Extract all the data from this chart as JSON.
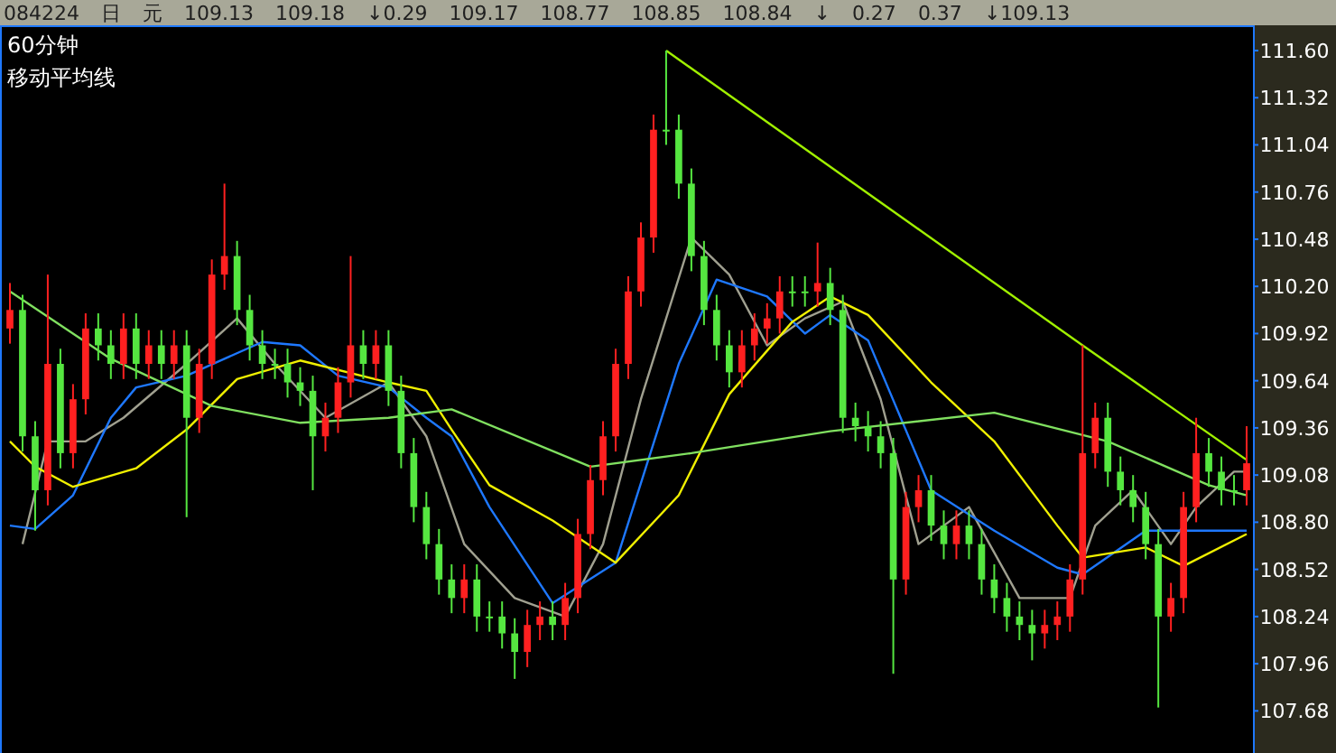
{
  "chart_data": {
    "type": "candlestick",
    "title": "60分钟",
    "subtitle": "移动平均线",
    "annotations": [
      "084224",
      "日",
      "元",
      "109.13",
      "109.18",
      "↓0.29",
      "109.17",
      "108.77",
      "108.85",
      "108.84",
      "↓",
      "0.27",
      "0.37",
      "↓109.13"
    ],
    "categories": [
      null,
      null,
      null,
      null,
      null,
      null,
      null,
      null,
      null,
      null,
      null,
      null,
      null,
      null,
      null,
      null,
      null,
      null,
      null,
      null,
      null,
      null,
      null,
      null,
      null,
      null,
      null,
      null,
      null,
      null,
      null,
      null,
      null,
      null,
      null,
      null,
      null,
      null,
      null,
      null,
      null,
      null,
      null,
      null,
      null,
      null,
      null,
      null,
      null,
      null,
      null,
      null,
      null,
      null,
      null,
      null,
      null,
      null,
      null,
      null,
      null,
      null,
      null,
      null,
      null,
      null,
      null,
      null,
      null,
      null,
      null,
      null,
      null,
      null,
      null,
      null,
      null,
      null,
      null,
      null,
      null,
      null,
      null,
      null,
      null,
      null,
      null,
      null,
      null,
      null,
      null,
      null,
      null,
      null,
      null,
      null,
      null,
      null,
      null
    ],
    "ohlc": [
      [
        109.95,
        110.22,
        109.86,
        110.06
      ],
      [
        110.06,
        110.15,
        109.22,
        109.31
      ],
      [
        109.31,
        109.4,
        108.75,
        108.99
      ],
      [
        108.99,
        110.27,
        108.9,
        109.74
      ],
      [
        109.74,
        109.83,
        109.12,
        109.21
      ],
      [
        109.21,
        109.62,
        109.12,
        109.53
      ],
      [
        109.53,
        110.04,
        109.44,
        109.95
      ],
      [
        109.95,
        110.04,
        109.76,
        109.85
      ],
      [
        109.85,
        109.94,
        109.65,
        109.74
      ],
      [
        109.74,
        110.04,
        109.65,
        109.95
      ],
      [
        109.95,
        110.04,
        109.65,
        109.74
      ],
      [
        109.74,
        109.94,
        109.65,
        109.85
      ],
      [
        109.85,
        109.94,
        109.65,
        109.74
      ],
      [
        109.74,
        109.94,
        109.65,
        109.85
      ],
      [
        109.85,
        109.94,
        108.83,
        109.42
      ],
      [
        109.42,
        109.83,
        109.33,
        109.74
      ],
      [
        109.74,
        110.36,
        109.65,
        110.27
      ],
      [
        110.27,
        110.81,
        110.18,
        110.38
      ],
      [
        110.38,
        110.47,
        109.97,
        110.06
      ],
      [
        110.06,
        110.15,
        109.76,
        109.85
      ],
      [
        109.85,
        109.94,
        109.65,
        109.74
      ],
      [
        109.74,
        109.83,
        109.65,
        109.74
      ],
      [
        109.74,
        109.83,
        109.54,
        109.63
      ],
      [
        109.63,
        109.72,
        109.49,
        109.58
      ],
      [
        109.58,
        109.67,
        108.99,
        109.31
      ],
      [
        109.31,
        109.51,
        109.22,
        109.42
      ],
      [
        109.42,
        109.72,
        109.33,
        109.63
      ],
      [
        109.63,
        110.38,
        109.54,
        109.85
      ],
      [
        109.85,
        109.94,
        109.65,
        109.74
      ],
      [
        109.74,
        109.94,
        109.65,
        109.85
      ],
      [
        109.85,
        109.94,
        109.49,
        109.58
      ],
      [
        109.58,
        109.67,
        109.12,
        109.21
      ],
      [
        109.21,
        109.3,
        108.8,
        108.89
      ],
      [
        108.89,
        108.98,
        108.58,
        108.67
      ],
      [
        108.67,
        108.76,
        108.37,
        108.46
      ],
      [
        108.46,
        108.55,
        108.26,
        108.35
      ],
      [
        108.35,
        108.55,
        108.26,
        108.46
      ],
      [
        108.46,
        108.55,
        108.15,
        108.24
      ],
      [
        108.24,
        108.33,
        108.15,
        108.24
      ],
      [
        108.24,
        108.33,
        108.05,
        108.14
      ],
      [
        108.14,
        108.23,
        107.87,
        108.03
      ],
      [
        108.03,
        108.28,
        107.94,
        108.19
      ],
      [
        108.19,
        108.33,
        108.1,
        108.24
      ],
      [
        108.24,
        108.33,
        108.1,
        108.19
      ],
      [
        108.19,
        108.44,
        108.1,
        108.35
      ],
      [
        108.35,
        108.82,
        108.26,
        108.73
      ],
      [
        108.73,
        109.14,
        108.64,
        109.05
      ],
      [
        109.05,
        109.4,
        108.96,
        109.31
      ],
      [
        109.31,
        109.83,
        109.22,
        109.74
      ],
      [
        109.74,
        110.26,
        109.65,
        110.17
      ],
      [
        110.17,
        110.58,
        110.08,
        110.49
      ],
      [
        110.49,
        111.22,
        110.4,
        111.13
      ],
      [
        111.13,
        111.6,
        111.04,
        111.13
      ],
      [
        111.13,
        111.22,
        110.72,
        110.81
      ],
      [
        110.81,
        110.9,
        110.29,
        110.38
      ],
      [
        110.38,
        110.47,
        109.97,
        110.06
      ],
      [
        110.06,
        110.15,
        109.76,
        109.85
      ],
      [
        109.85,
        109.94,
        109.6,
        109.69
      ],
      [
        109.69,
        109.94,
        109.6,
        109.85
      ],
      [
        109.85,
        110.04,
        109.76,
        109.95
      ],
      [
        109.95,
        110.1,
        109.86,
        110.01
      ],
      [
        110.01,
        110.26,
        109.92,
        110.17
      ],
      [
        110.17,
        110.26,
        110.08,
        110.17
      ],
      [
        110.17,
        110.26,
        110.08,
        110.17
      ],
      [
        110.17,
        110.46,
        110.08,
        110.22
      ],
      [
        110.22,
        110.31,
        109.97,
        110.06
      ],
      [
        110.06,
        110.15,
        109.33,
        109.42
      ],
      [
        109.42,
        109.51,
        109.28,
        109.37
      ],
      [
        109.37,
        109.46,
        109.22,
        109.31
      ],
      [
        109.31,
        109.4,
        109.12,
        109.21
      ],
      [
        109.21,
        109.3,
        107.9,
        108.46
      ],
      [
        108.46,
        108.98,
        108.37,
        108.89
      ],
      [
        108.89,
        109.08,
        108.8,
        108.99
      ],
      [
        108.99,
        109.08,
        108.69,
        108.78
      ],
      [
        108.78,
        108.87,
        108.58,
        108.67
      ],
      [
        108.67,
        108.87,
        108.58,
        108.78
      ],
      [
        108.78,
        108.87,
        108.58,
        108.67
      ],
      [
        108.67,
        108.76,
        108.37,
        108.46
      ],
      [
        108.46,
        108.55,
        108.26,
        108.35
      ],
      [
        108.35,
        108.44,
        108.15,
        108.24
      ],
      [
        108.24,
        108.33,
        108.1,
        108.19
      ],
      [
        108.19,
        108.28,
        107.98,
        108.14
      ],
      [
        108.14,
        108.28,
        108.05,
        108.19
      ],
      [
        108.19,
        108.33,
        108.1,
        108.24
      ],
      [
        108.24,
        108.55,
        108.15,
        108.46
      ],
      [
        108.46,
        109.85,
        108.37,
        109.21
      ],
      [
        109.21,
        109.51,
        109.12,
        109.42
      ],
      [
        109.42,
        109.51,
        109.01,
        109.1
      ],
      [
        109.1,
        109.19,
        108.9,
        108.99
      ],
      [
        108.99,
        109.08,
        108.8,
        108.89
      ],
      [
        108.89,
        108.98,
        108.58,
        108.67
      ],
      [
        108.67,
        108.76,
        107.7,
        108.24
      ],
      [
        108.24,
        108.44,
        108.15,
        108.35
      ],
      [
        108.35,
        108.98,
        108.26,
        108.89
      ],
      [
        108.89,
        109.42,
        108.8,
        109.21
      ],
      [
        109.21,
        109.3,
        109.01,
        109.1
      ],
      [
        109.1,
        109.19,
        108.9,
        108.99
      ],
      [
        108.99,
        109.08,
        108.9,
        108.99
      ],
      [
        108.99,
        109.37,
        108.9,
        109.15
      ]
    ],
    "colors": [
      "#ff2020",
      "#55e640",
      "#55e640",
      "#ff2020",
      "#55e640",
      "#ff2020",
      "#ff2020",
      "#55e640",
      "#55e640",
      "#ff2020",
      "#55e640",
      "#ff2020",
      "#55e640",
      "#ff2020",
      "#55e640",
      "#ff2020",
      "#ff2020",
      "#ff2020",
      "#55e640",
      "#55e640",
      "#55e640",
      "#55e640",
      "#55e640",
      "#55e640",
      "#55e640",
      "#ff2020",
      "#ff2020",
      "#ff2020",
      "#55e640",
      "#ff2020",
      "#55e640",
      "#55e640",
      "#55e640",
      "#55e640",
      "#55e640",
      "#55e640",
      "#ff2020",
      "#55e640",
      "#55e640",
      "#55e640",
      "#55e640",
      "#ff2020",
      "#ff2020",
      "#55e640",
      "#ff2020",
      "#ff2020",
      "#ff2020",
      "#ff2020",
      "#ff2020",
      "#ff2020",
      "#ff2020",
      "#ff2020",
      "#55e640",
      "#55e640",
      "#55e640",
      "#55e640",
      "#55e640",
      "#55e640",
      "#ff2020",
      "#ff2020",
      "#ff2020",
      "#ff2020",
      "#55e640",
      "#55e640",
      "#ff2020",
      "#55e640",
      "#55e640",
      "#55e640",
      "#55e640",
      "#55e640",
      "#55e640",
      "#ff2020",
      "#ff2020",
      "#55e640",
      "#55e640",
      "#ff2020",
      "#55e640",
      "#55e640",
      "#55e640",
      "#55e640",
      "#55e640",
      "#55e640",
      "#ff2020",
      "#ff2020",
      "#ff2020",
      "#ff2020",
      "#ff2020",
      "#55e640",
      "#55e640",
      "#55e640",
      "#55e640",
      "#55e640",
      "#ff2020",
      "#ff2020",
      "#ff2020",
      "#55e640",
      "#55e640",
      "#55e640",
      "#ff2020"
    ],
    "series": [
      {
        "type": "line",
        "color": "#a0a090",
        "values": [
          null,
          108.67,
          null,
          109.28,
          null,
          null,
          109.28,
          null,
          null,
          109.42,
          null,
          null,
          null,
          null,
          109.74,
          null,
          null,
          null,
          110.01,
          null,
          null,
          109.74,
          null,
          null,
          null,
          109.42,
          null,
          null,
          null,
          null,
          109.63,
          null,
          null,
          109.31,
          null,
          null,
          108.67,
          null,
          null,
          null,
          108.35,
          null,
          null,
          null,
          108.24,
          null,
          null,
          108.67,
          null,
          null,
          109.53,
          null,
          null,
          null,
          110.49,
          null,
          null,
          110.27,
          null,
          null,
          109.85,
          null,
          null,
          110.01,
          null,
          null,
          110.11,
          null,
          null,
          109.53,
          null,
          null,
          108.67,
          null,
          null,
          null,
          108.89,
          null,
          null,
          null,
          108.35,
          null,
          null,
          null,
          108.35,
          null,
          108.78,
          null,
          null,
          108.99,
          null,
          null,
          108.67,
          null,
          108.89,
          null,
          null,
          109.1,
          109.1
        ]
      },
      {
        "type": "line",
        "color": "#1e78ff",
        "values": [
          108.78,
          null,
          108.76,
          null,
          null,
          108.96,
          null,
          null,
          109.42,
          null,
          109.6,
          null,
          null,
          null,
          109.67,
          null,
          null,
          109.77,
          null,
          null,
          109.87,
          null,
          null,
          109.85,
          null,
          null,
          109.67,
          null,
          null,
          null,
          109.6,
          null,
          null,
          109.42,
          null,
          109.31,
          null,
          null,
          108.89,
          null,
          null,
          null,
          null,
          108.32,
          null,
          null,
          null,
          null,
          108.56,
          null,
          null,
          null,
          null,
          109.74,
          null,
          null,
          110.24,
          null,
          null,
          null,
          110.14,
          null,
          null,
          109.92,
          null,
          110.03,
          null,
          null,
          109.88,
          null,
          null,
          null,
          null,
          108.99,
          null,
          null,
          null,
          null,
          108.75,
          null,
          null,
          null,
          null,
          108.53,
          null,
          108.49,
          null,
          null,
          null,
          null,
          108.75,
          null,
          null,
          null,
          null,
          108.75,
          null,
          null,
          108.75
        ]
      },
      {
        "type": "line",
        "color": "#f0f000",
        "values": [
          109.28,
          null,
          109.13,
          null,
          null,
          109.01,
          null,
          null,
          null,
          null,
          109.12,
          null,
          null,
          null,
          109.35,
          null,
          null,
          null,
          109.65,
          null,
          null,
          null,
          null,
          109.76,
          null,
          null,
          null,
          null,
          null,
          null,
          109.63,
          null,
          null,
          109.58,
          null,
          109.35,
          null,
          null,
          109.02,
          null,
          null,
          null,
          null,
          108.81,
          null,
          null,
          null,
          null,
          108.56,
          null,
          null,
          null,
          null,
          108.96,
          null,
          null,
          null,
          109.56,
          null,
          null,
          null,
          null,
          109.99,
          null,
          null,
          110.14,
          null,
          null,
          110.03,
          null,
          null,
          null,
          null,
          109.63,
          null,
          null,
          null,
          null,
          109.28,
          null,
          null,
          null,
          null,
          108.78,
          null,
          108.59,
          null,
          null,
          null,
          null,
          108.65,
          null,
          null,
          108.54,
          null,
          null,
          null,
          null,
          108.73
        ]
      },
      {
        "type": "line",
        "color": "#80e060",
        "values": [
          110.17,
          null,
          null,
          null,
          null,
          null,
          null,
          null,
          109.77,
          null,
          null,
          null,
          null,
          null,
          null,
          null,
          109.49,
          null,
          null,
          null,
          null,
          null,
          null,
          109.39,
          null,
          null,
          null,
          null,
          null,
          null,
          109.42,
          null,
          null,
          null,
          null,
          109.47,
          null,
          null,
          null,
          null,
          null,
          null,
          null,
          null,
          null,
          null,
          109.13,
          null,
          null,
          null,
          null,
          null,
          null,
          null,
          109.21,
          null,
          null,
          null,
          null,
          null,
          null,
          null,
          null,
          null,
          null,
          109.34,
          null,
          null,
          null,
          null,
          null,
          null,
          null,
          null,
          null,
          null,
          null,
          null,
          109.45,
          null,
          null,
          null,
          null,
          null,
          null,
          null,
          null,
          109.28,
          null,
          null,
          null,
          null,
          null,
          null,
          null,
          109.02,
          null,
          null,
          108.96
        ]
      },
      {
        "type": "line",
        "color": "#a0f000",
        "values": [
          null,
          null,
          null,
          null,
          null,
          null,
          null,
          null,
          null,
          null,
          null,
          null,
          null,
          null,
          null,
          null,
          null,
          null,
          null,
          null,
          null,
          null,
          null,
          null,
          null,
          null,
          null,
          null,
          null,
          null,
          null,
          null,
          null,
          null,
          null,
          null,
          null,
          null,
          null,
          null,
          null,
          null,
          null,
          null,
          null,
          null,
          null,
          null,
          null,
          null,
          null,
          null,
          111.6,
          null,
          null,
          null,
          null,
          null,
          null,
          null,
          null,
          null,
          null,
          null,
          null,
          null,
          null,
          null,
          null,
          null,
          null,
          null,
          null,
          null,
          null,
          null,
          null,
          null,
          null,
          null,
          null,
          null,
          null,
          null,
          null,
          109.85,
          null,
          null,
          null,
          null,
          null,
          null,
          null,
          null,
          null,
          null,
          null,
          null,
          109.17
        ]
      }
    ],
    "ylim": [
      107.43,
      111.75
    ],
    "yticks": [
      {
        "value": 111.6,
        "label": "111.60"
      },
      {
        "value": 111.32,
        "label": "111.32"
      },
      {
        "value": 111.04,
        "label": "111.04"
      },
      {
        "value": 110.76,
        "label": "110.76"
      },
      {
        "value": 110.48,
        "label": "110.48"
      },
      {
        "value": 110.2,
        "label": "110.20"
      },
      {
        "value": 109.92,
        "label": "109.92"
      },
      {
        "value": 109.64,
        "label": "109.64"
      },
      {
        "value": 109.36,
        "label": "109.36"
      },
      {
        "value": 109.08,
        "label": "109.08"
      },
      {
        "value": 108.8,
        "label": "108.80"
      },
      {
        "value": 108.52,
        "label": "108.52"
      },
      {
        "value": 108.24,
        "label": "108.24"
      },
      {
        "value": 107.96,
        "label": "107.96"
      },
      {
        "value": 107.68,
        "label": "107.68"
      }
    ],
    "tick_labels": "y"
  }
}
